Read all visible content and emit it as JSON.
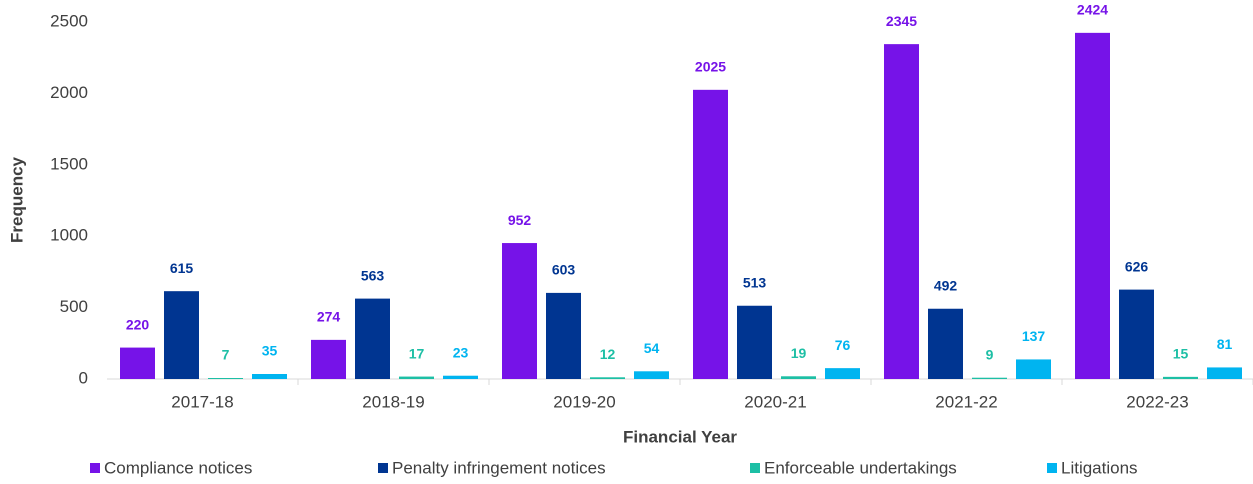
{
  "chart_data": {
    "type": "bar",
    "x_label": "Financial Year",
    "y_label": "Frequency",
    "categories": [
      "2017-18",
      "2018-19",
      "2019-20",
      "2020-21",
      "2021-22",
      "2022-23"
    ],
    "series": [
      {
        "name": "Compliance notices",
        "color": "#7613e8",
        "values": [
          220,
          274,
          952,
          2025,
          2345,
          2424
        ]
      },
      {
        "name": "Penalty infringement notices",
        "color": "#003591",
        "values": [
          615,
          563,
          603,
          513,
          492,
          626
        ]
      },
      {
        "name": "Enforceable undertakings",
        "color": "#1dbfa5",
        "values": [
          7,
          17,
          12,
          19,
          9,
          15
        ]
      },
      {
        "name": "Litigations",
        "color": "#00b4f0",
        "values": [
          35,
          23,
          54,
          76,
          137,
          81
        ]
      }
    ],
    "ylim": [
      0,
      2500
    ],
    "yticks": [
      0,
      500,
      1000,
      1500,
      2000,
      2500
    ],
    "grid": false,
    "legend": "bottom"
  }
}
